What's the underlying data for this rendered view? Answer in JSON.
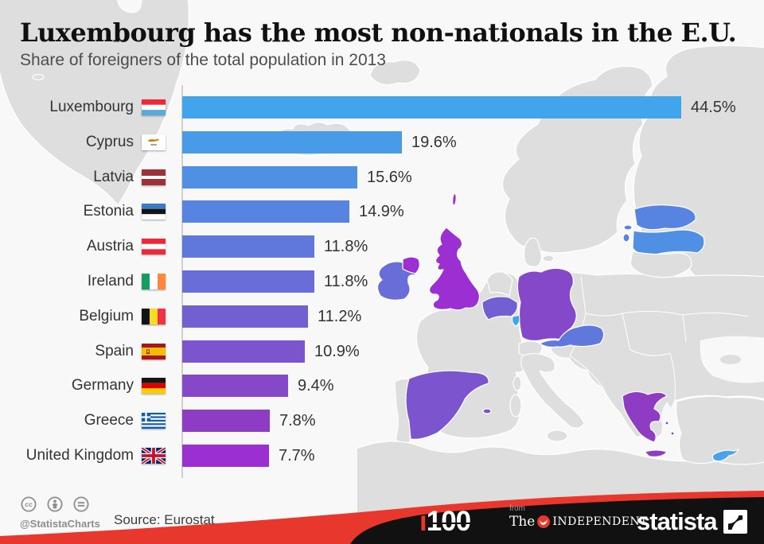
{
  "header": {
    "title": "Luxembourg has the most non-nationals in the E.U.",
    "subtitle": "Share of foreigners of the total population in 2013"
  },
  "chart_data": {
    "type": "bar",
    "orientation": "horizontal",
    "title": "Luxembourg has the most non-nationals in the E.U.",
    "subtitle": "Share of foreigners of the total population in 2013",
    "unit": "%",
    "categories": [
      "Luxembourg",
      "Cyprus",
      "Latvia",
      "Estonia",
      "Austria",
      "Ireland",
      "Belgium",
      "Spain",
      "Germany",
      "Greece",
      "United Kingdom"
    ],
    "values": [
      44.5,
      19.6,
      15.6,
      14.9,
      11.8,
      11.8,
      11.2,
      10.9,
      9.4,
      7.8,
      7.7
    ],
    "value_labels": [
      "44.5%",
      "19.6%",
      "15.6%",
      "14.9%",
      "11.8%",
      "11.8%",
      "11.2%",
      "10.9%",
      "9.4%",
      "7.8%",
      "7.7%"
    ],
    "bar_colors": [
      "#41a5ee",
      "#489be9",
      "#4f90e5",
      "#5784e0",
      "#6078db",
      "#696dd7",
      "#7260d2",
      "#7b54ce",
      "#8548c9",
      "#8f3cc5",
      "#9b2fd1"
    ],
    "flags": [
      "luxembourg",
      "cyprus",
      "latvia",
      "estonia",
      "austria",
      "ireland",
      "belgium",
      "spain",
      "germany",
      "greece",
      "uk"
    ],
    "xlim": [
      0,
      47
    ],
    "grid": false,
    "legend": "none"
  },
  "footer": {
    "license_icons": [
      "cc-icon",
      "attribution-icon",
      "no-derivatives-icon"
    ],
    "handle": "@StatistaCharts",
    "source": "Source: Eurostat",
    "i100_i": "i",
    "i100_number": "100",
    "from_label": "from",
    "publisher_the": "The",
    "publisher_name": "INDEPENDENT",
    "brand": "statista"
  },
  "colors": {
    "accent_red": "#e8372c",
    "footer_black": "#111111",
    "land_gray": "#dedede",
    "sea": "#f8f8f8",
    "axis": "#cfcfcf",
    "text_dark": "#333333",
    "text_gray": "#8e8e8e"
  }
}
